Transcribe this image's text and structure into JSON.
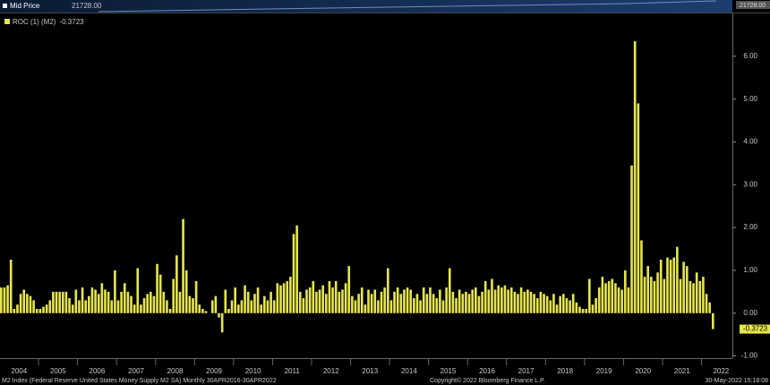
{
  "top_panel": {
    "label": "Mid Price",
    "value": "21728.00"
  },
  "footer": {
    "description": "M2 Index (Federal Reserve United States Money Supply M2 SA)  Monthly 30APR2016-30APR2022",
    "copyright": "Copyright© 2022 Bloomberg Finance L.P.",
    "timestamp": "30-May-2022 15:18:08"
  },
  "chart_data": {
    "type": "bar",
    "categories": [
      "2004",
      null,
      null,
      null,
      null,
      null,
      null,
      null,
      null,
      null,
      null,
      null,
      "2005",
      null,
      null,
      null,
      null,
      null,
      null,
      null,
      null,
      null,
      null,
      null,
      "2006",
      null,
      null,
      null,
      null,
      null,
      null,
      null,
      null,
      null,
      null,
      null,
      "2007",
      null,
      null,
      null,
      null,
      null,
      null,
      null,
      null,
      null,
      null,
      null,
      "2008",
      null,
      null,
      null,
      null,
      null,
      null,
      null,
      null,
      null,
      null,
      null,
      "2009",
      null,
      null,
      null,
      null,
      null,
      null,
      null,
      null,
      null,
      null,
      null,
      "2010",
      null,
      null,
      null,
      null,
      null,
      null,
      null,
      null,
      null,
      null,
      null,
      "2011",
      null,
      null,
      null,
      null,
      null,
      null,
      null,
      null,
      null,
      null,
      null,
      "2012",
      null,
      null,
      null,
      null,
      null,
      null,
      null,
      null,
      null,
      null,
      null,
      "2013",
      null,
      null,
      null,
      null,
      null,
      null,
      null,
      null,
      null,
      null,
      null,
      "2014",
      null,
      null,
      null,
      null,
      null,
      null,
      null,
      null,
      null,
      null,
      null,
      "2015",
      null,
      null,
      null,
      null,
      null,
      null,
      null,
      null,
      null,
      null,
      null,
      "2016",
      null,
      null,
      null,
      null,
      null,
      null,
      null,
      null,
      null,
      null,
      null,
      "2017",
      null,
      null,
      null,
      null,
      null,
      null,
      null,
      null,
      null,
      null,
      null,
      "2018",
      null,
      null,
      null,
      null,
      null,
      null,
      null,
      null,
      null,
      null,
      null,
      "2019",
      null,
      null,
      null,
      null,
      null,
      null,
      null,
      null,
      null,
      null,
      null,
      "2020",
      null,
      null,
      null,
      null,
      null,
      null,
      null,
      null,
      null,
      null,
      null,
      "2021",
      null,
      null,
      null,
      null,
      null,
      null,
      null,
      null,
      null,
      null,
      null,
      "2022",
      null,
      null,
      null
    ],
    "series": [
      {
        "name": "ROC (1) (M2)",
        "color": "#e6e64c",
        "values": [
          0.6,
          0.6,
          0.65,
          1.25,
          0.1,
          0.2,
          0.45,
          0.55,
          0.45,
          0.4,
          0.3,
          0.1,
          0.1,
          0.15,
          0.2,
          0.3,
          0.5,
          0.5,
          0.5,
          0.5,
          0.5,
          0.35,
          0.2,
          0.55,
          0.3,
          0.6,
          0.3,
          0.4,
          0.6,
          0.55,
          0.45,
          0.7,
          0.55,
          0.5,
          0.3,
          1.0,
          0.3,
          0.5,
          0.7,
          0.5,
          0.4,
          0.2,
          1.05,
          0.2,
          0.35,
          0.45,
          0.5,
          0.4,
          1.15,
          0.9,
          0.5,
          0.3,
          0.1,
          0.8,
          1.35,
          0.5,
          2.2,
          1.0,
          0.4,
          0.35,
          0.75,
          0.2,
          0.1,
          0.05,
          0.0,
          0.3,
          0.4,
          -0.1,
          -0.45,
          0.55,
          0.1,
          0.3,
          0.6,
          0.2,
          0.3,
          0.65,
          0.5,
          0.3,
          0.45,
          0.6,
          0.2,
          0.4,
          0.3,
          0.5,
          0.3,
          0.7,
          0.65,
          0.7,
          0.75,
          0.85,
          1.85,
          2.05,
          0.5,
          0.35,
          0.55,
          0.6,
          0.75,
          0.5,
          0.55,
          0.65,
          0.45,
          0.75,
          0.6,
          0.75,
          0.5,
          0.55,
          0.7,
          1.1,
          0.4,
          0.3,
          0.45,
          0.6,
          0.2,
          0.55,
          0.45,
          0.55,
          0.3,
          0.5,
          0.6,
          1.05,
          0.3,
          0.5,
          0.6,
          0.45,
          0.55,
          0.6,
          0.55,
          0.35,
          0.45,
          0.3,
          0.6,
          0.45,
          0.6,
          0.45,
          0.35,
          0.55,
          0.3,
          0.6,
          1.05,
          0.5,
          0.35,
          0.55,
          0.45,
          0.5,
          0.45,
          0.55,
          0.6,
          0.4,
          0.5,
          0.75,
          0.55,
          0.8,
          0.55,
          0.65,
          0.6,
          0.65,
          0.55,
          0.6,
          0.5,
          0.45,
          0.6,
          0.5,
          0.55,
          0.5,
          0.45,
          0.35,
          0.5,
          0.45,
          0.4,
          0.3,
          0.45,
          0.2,
          0.4,
          0.45,
          0.35,
          0.3,
          0.45,
          0.25,
          0.15,
          0.1,
          0.1,
          0.8,
          0.2,
          0.35,
          0.6,
          0.85,
          0.7,
          0.75,
          0.8,
          0.7,
          0.6,
          0.55,
          1.0,
          0.6,
          3.45,
          6.35,
          4.9,
          1.7,
          0.85,
          1.1,
          0.85,
          0.75,
          0.95,
          1.25,
          0.8,
          1.3,
          1.25,
          1.3,
          1.55,
          0.8,
          1.2,
          1.1,
          0.75,
          0.7,
          0.95,
          0.75,
          0.85,
          0.45,
          0.25,
          -0.3723
        ]
      }
    ],
    "ylim": [
      -1.05,
      7.0
    ],
    "yticks": [
      {
        "value": -1,
        "label": "-1.00"
      },
      {
        "value": 0,
        "label": "0.00"
      },
      {
        "value": 1,
        "label": "1.00"
      },
      {
        "value": 2,
        "label": "2.00"
      },
      {
        "value": 3,
        "label": "3.00"
      },
      {
        "value": 4,
        "label": "4.00"
      },
      {
        "value": 5,
        "label": "5.00"
      },
      {
        "value": 6,
        "label": "6.00"
      }
    ],
    "grid": false
  }
}
